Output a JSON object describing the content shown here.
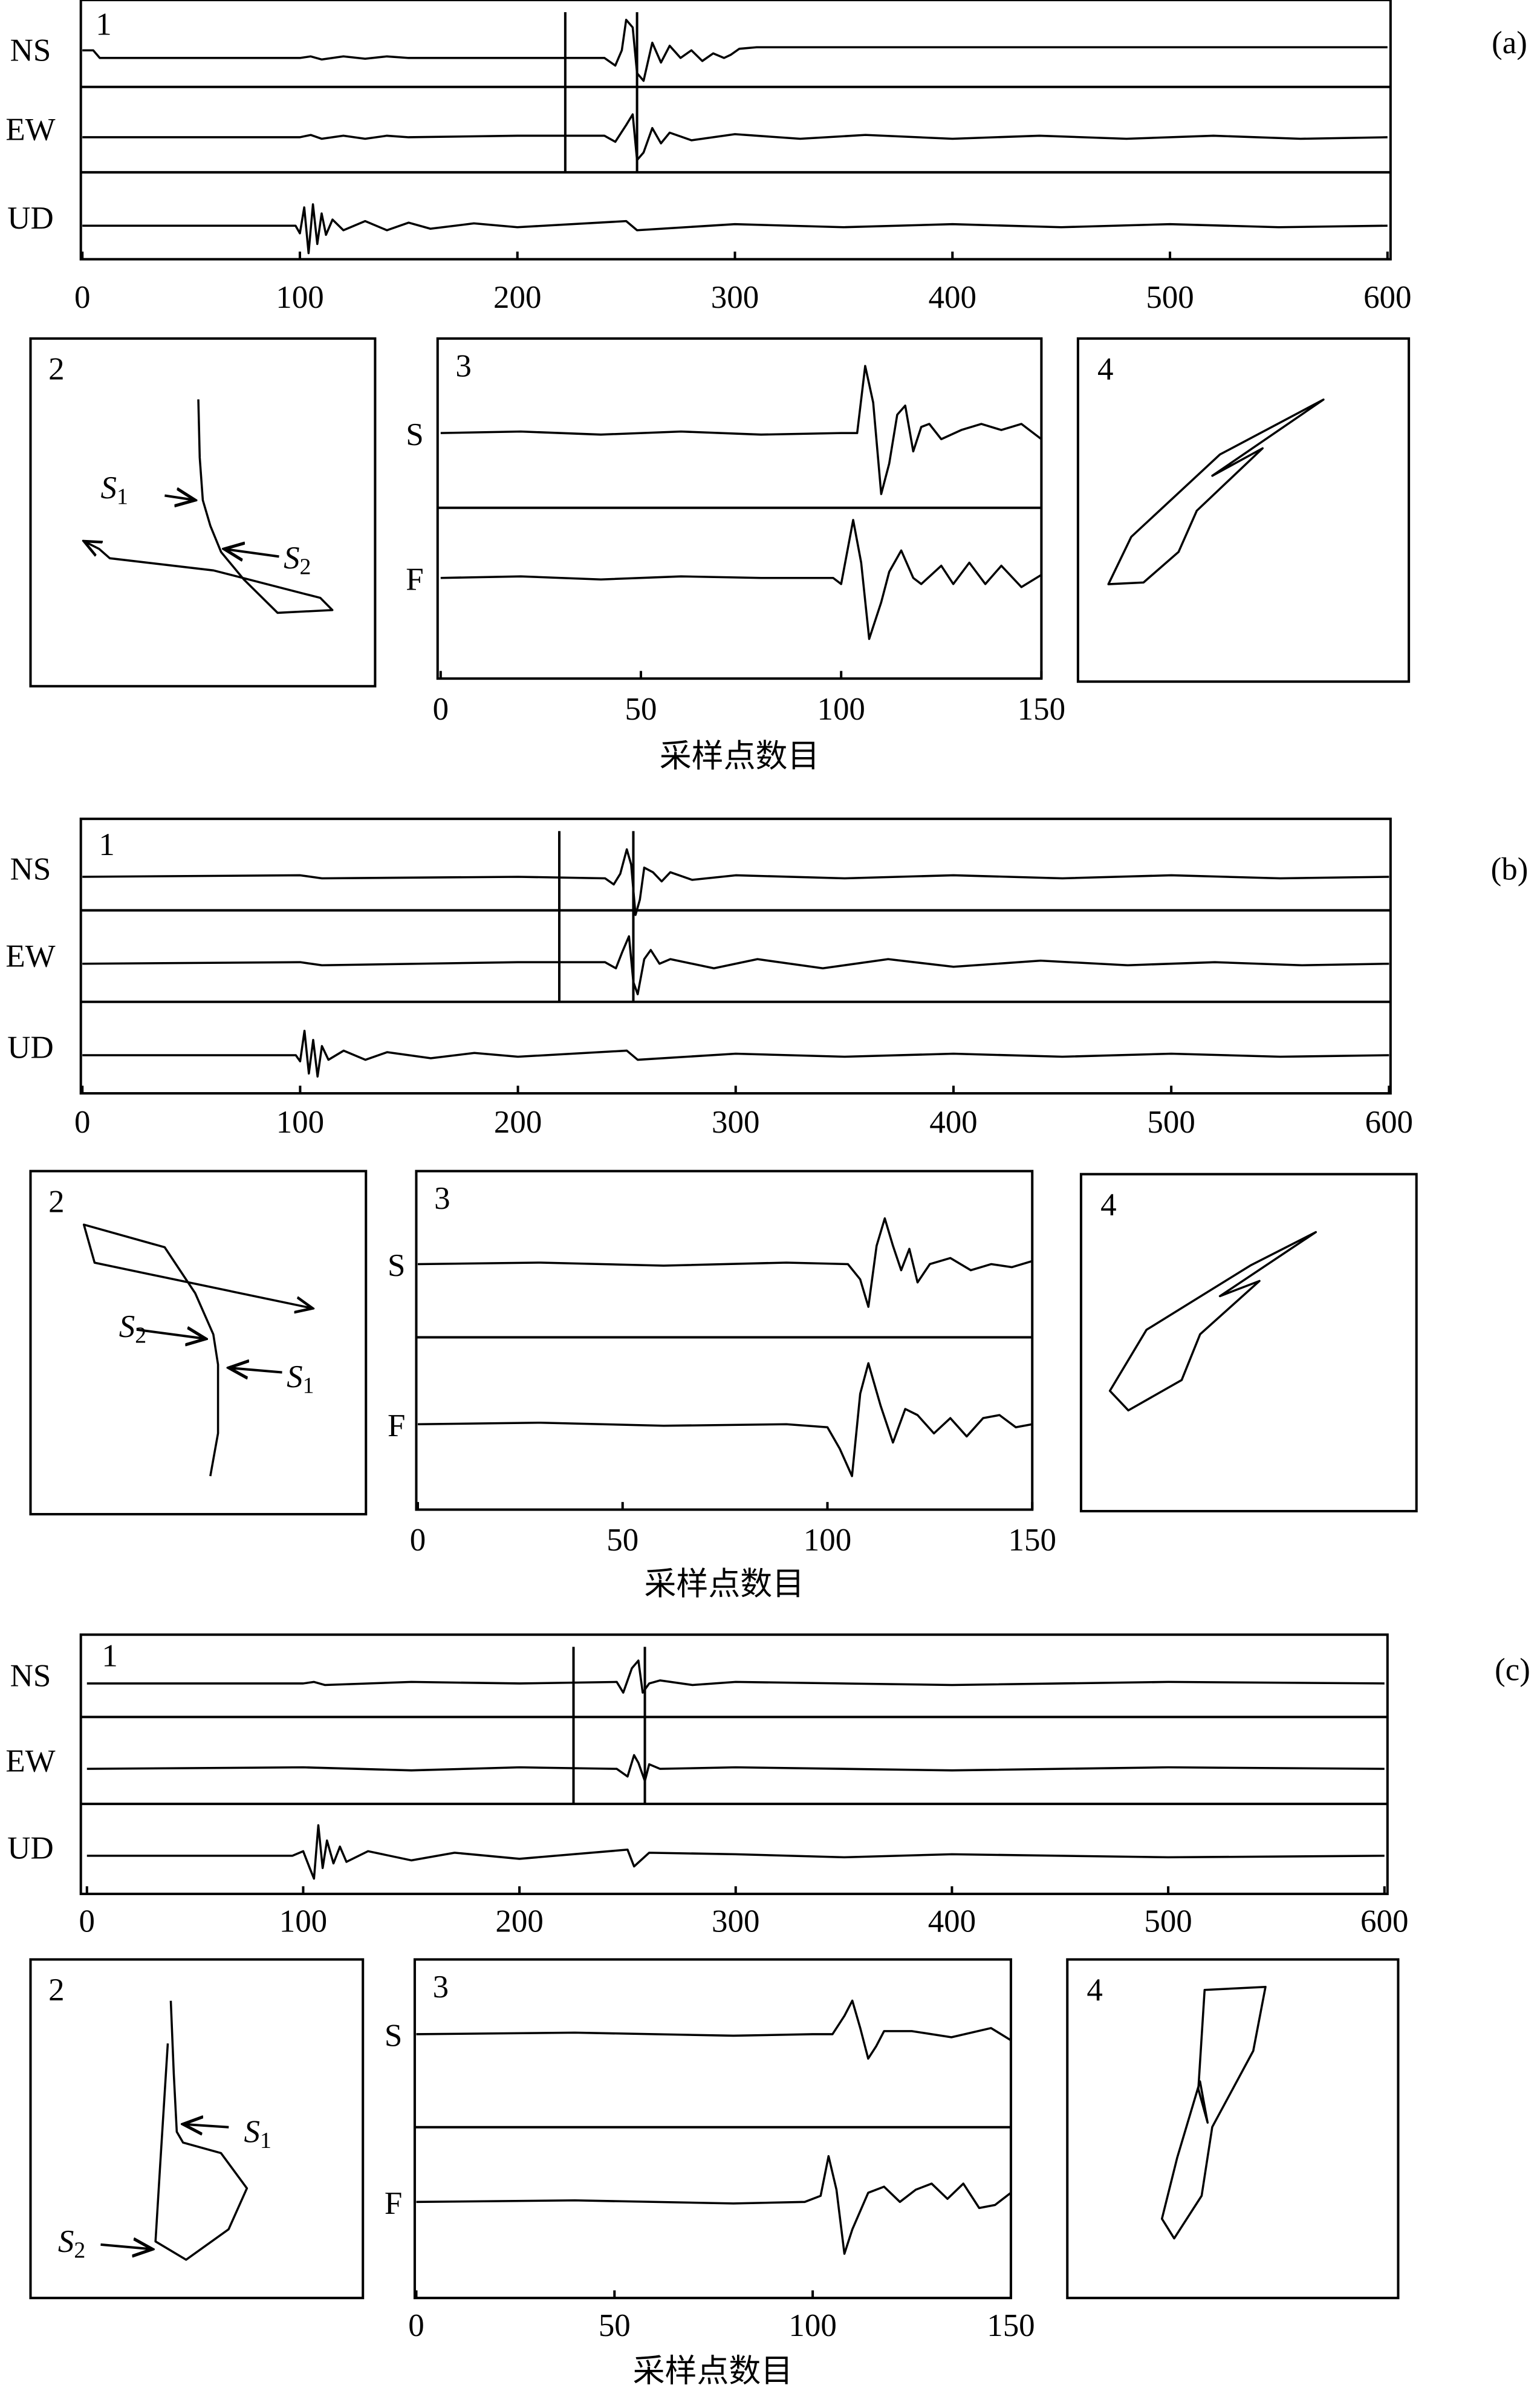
{
  "panels": [
    {
      "label": "(a)",
      "seismogram": {
        "number": "1",
        "xlim": [
          0,
          600
        ],
        "xticks": [
          0,
          100,
          200,
          300,
          400,
          500,
          600
        ],
        "markers": [
          222,
          255
        ],
        "traces": [
          {
            "name": "NS",
            "x": [
              0,
              5,
              8,
              100,
              105,
              110,
              120,
              130,
              140,
              150,
              200,
              240,
              245,
              248,
              250,
              253,
              255,
              258,
              262,
              266,
              270,
              275,
              280,
              285,
              290,
              295,
              298,
              302,
              310,
              600
            ],
            "values": [
              0.5,
              0.5,
              0,
              0,
              0.1,
              -0.1,
              0.1,
              -0.05,
              0.1,
              0,
              0,
              0,
              -0.5,
              0.5,
              2.5,
              2.0,
              -1.0,
              -1.5,
              1.0,
              -0.3,
              0.8,
              0,
              0.5,
              -0.2,
              0.3,
              0,
              0.2,
              0.6,
              0.7,
              0.7
            ]
          },
          {
            "name": "EW",
            "x": [
              0,
              100,
              105,
              110,
              120,
              130,
              140,
              150,
              200,
              240,
              245,
              250,
              253,
              255,
              258,
              262,
              266,
              270,
              280,
              300,
              330,
              360,
              400,
              440,
              480,
              520,
              560,
              600
            ],
            "values": [
              0,
              0,
              0.15,
              -0.1,
              0.1,
              -0.1,
              0.1,
              0,
              0.1,
              0.1,
              -0.3,
              0.8,
              1.5,
              -1.5,
              -1.0,
              0.6,
              -0.4,
              0.3,
              -0.2,
              0.2,
              -0.1,
              0.15,
              -0.1,
              0.1,
              -0.1,
              0.1,
              -0.1,
              0
            ]
          },
          {
            "name": "UD",
            "x": [
              0,
              98,
              100,
              102,
              104,
              106,
              108,
              110,
              112,
              115,
              120,
              130,
              140,
              150,
              160,
              180,
              200,
              250,
              255,
              300,
              350,
              400,
              450,
              500,
              550,
              600
            ],
            "values": [
              0,
              0,
              -0.5,
              1.2,
              -1.8,
              1.4,
              -1.2,
              0.8,
              -0.6,
              0.4,
              -0.3,
              0.3,
              -0.3,
              0.2,
              -0.2,
              0.15,
              -0.1,
              0.3,
              -0.3,
              0.1,
              -0.1,
              0.1,
              -0.1,
              0.1,
              -0.1,
              0
            ]
          }
        ]
      },
      "particle_motion": {
        "number": "2",
        "trajectory": {
          "x": [
            48.7,
            49.1,
            50,
            52.2,
            55.3,
            61.9,
            71.7,
            87.6,
            84.1,
            53.1,
            23,
            19.9,
            15.5
          ],
          "y": [
            17.5,
            34.2,
            46.5,
            53.9,
            61.4,
            69.3,
            78.9,
            78.1,
            74.6,
            66.7,
            63.2,
            60.5,
            58.3
          ]
        },
        "annotations": [
          {
            "text": "S",
            "sub": "1"
          },
          {
            "text": "S",
            "sub": "2"
          }
        ]
      },
      "rotated": {
        "number": "3",
        "xlim": [
          0,
          150
        ],
        "xticks": [
          0,
          50,
          100,
          150
        ],
        "xlabel": "采样点数目",
        "traces": [
          {
            "name": "S",
            "x": [
              0,
              20,
              40,
              60,
              80,
              100,
              104,
              106,
              108,
              110,
              112,
              114,
              116,
              118,
              120,
              122,
              125,
              130,
              135,
              140,
              145,
              150
            ],
            "values": [
              0,
              0.05,
              -0.05,
              0.05,
              -0.05,
              0,
              0,
              2.2,
              1.0,
              -2.0,
              -1.0,
              0.6,
              0.9,
              -0.6,
              0.2,
              0.3,
              -0.2,
              0.1,
              0.3,
              0.1,
              0.3,
              -0.2
            ]
          },
          {
            "name": "F",
            "x": [
              0,
              20,
              40,
              60,
              80,
              98,
              100,
              103,
              105,
              107,
              110,
              112,
              115,
              118,
              120,
              125,
              128,
              132,
              136,
              140,
              145,
              150
            ],
            "values": [
              0,
              0.05,
              -0.05,
              0.05,
              0,
              0,
              -0.2,
              1.9,
              0.5,
              -2.0,
              -0.8,
              0.2,
              0.9,
              0,
              -0.2,
              0.4,
              -0.2,
              0.5,
              -0.2,
              0.4,
              -0.3,
              0.1
            ]
          }
        ]
      },
      "polarization": {
        "number": "4",
        "x": [
          9.2,
          16.1,
          42.9,
          74.2,
          40.6,
          55.8,
          35.9,
          30.4,
          19.8
        ],
        "y": [
          71.6,
          57.8,
          33.8,
          17.8,
          40,
          32,
          50.2,
          62.2,
          71.1
        ]
      }
    },
    {
      "label": "(b)",
      "seismogram": {
        "number": "1",
        "xlim": [
          0,
          600
        ],
        "xticks": [
          0,
          100,
          200,
          300,
          400,
          500,
          600
        ],
        "markers": [
          219,
          253
        ],
        "traces": [
          {
            "name": "NS",
            "x": [
              0,
              100,
              110,
              200,
              240,
              244,
              247,
              250,
              252,
              254,
              256,
              258,
              262,
              266,
              270,
              280,
              300,
              350,
              400,
              450,
              500,
              550,
              600
            ],
            "values": [
              0,
              0.1,
              -0.1,
              0,
              -0.1,
              -0.5,
              0.2,
              1.8,
              0.8,
              -2.5,
              -1.5,
              0.6,
              0.3,
              -0.3,
              0.3,
              -0.2,
              0.1,
              -0.1,
              0.1,
              -0.1,
              0.1,
              -0.1,
              0
            ]
          },
          {
            "name": "EW",
            "x": [
              0,
              100,
              110,
              200,
              240,
              245,
              248,
              251,
              253,
              255,
              258,
              261,
              265,
              270,
              290,
              310,
              340,
              370,
              400,
              440,
              480,
              520,
              560,
              600
            ],
            "values": [
              0,
              0.1,
              -0.1,
              0.1,
              0.1,
              -0.3,
              0.8,
              1.8,
              -1.2,
              -2.0,
              0.3,
              0.9,
              0,
              0.3,
              -0.3,
              0.3,
              -0.3,
              0.3,
              -0.2,
              0.2,
              -0.1,
              0.1,
              -0.1,
              0
            ]
          },
          {
            "name": "UD",
            "x": [
              0,
              98,
              100,
              102,
              104,
              106,
              108,
              110,
              113,
              120,
              130,
              140,
              160,
              180,
              200,
              250,
              255,
              300,
              350,
              400,
              450,
              500,
              550,
              600
            ],
            "values": [
              0,
              0,
              -0.4,
              1.6,
              -1.2,
              1.0,
              -1.4,
              0.6,
              -0.3,
              0.3,
              -0.3,
              0.2,
              -0.2,
              0.15,
              -0.1,
              0.3,
              -0.3,
              0.1,
              -0.1,
              0.1,
              -0.1,
              0.1,
              -0.1,
              0
            ]
          }
        ]
      },
      "particle_motion": {
        "number": "2",
        "trajectory": {
          "x": [
            53.6,
            55.9,
            55.9,
            54.5,
            49.1,
            40,
            15.9,
            19.1,
            84.1
          ],
          "y": [
            88.9,
            76.4,
            56.4,
            47.6,
            35.6,
            22.2,
            15.6,
            26.7,
            40
          ]
        },
        "annotations": [
          {
            "text": "S",
            "sub": "1"
          },
          {
            "text": "S",
            "sub": "2"
          }
        ]
      },
      "rotated": {
        "number": "3",
        "xlim": [
          0,
          150
        ],
        "xticks": [
          0,
          50,
          100,
          150
        ],
        "xlabel": "采样点数目",
        "traces": [
          {
            "name": "S",
            "x": [
              0,
              30,
              60,
              90,
              105,
              108,
              110,
              112,
              114,
              116,
              118,
              120,
              122,
              125,
              130,
              135,
              140,
              145,
              150
            ],
            "values": [
              0,
              0.05,
              -0.05,
              0.05,
              0,
              -0.5,
              -1.4,
              0.6,
              1.5,
              0.6,
              -0.2,
              0.5,
              -0.6,
              0,
              0.2,
              -0.2,
              0,
              -0.1,
              0.1
            ]
          },
          {
            "name": "F",
            "x": [
              0,
              30,
              60,
              90,
              100,
              103,
              106,
              108,
              110,
              113,
              116,
              119,
              122,
              126,
              130,
              134,
              138,
              142,
              146,
              150
            ],
            "values": [
              0,
              0.05,
              -0.05,
              0,
              -0.1,
              -0.8,
              -1.7,
              1.0,
              2.0,
              0.6,
              -0.6,
              0.5,
              0.3,
              -0.3,
              0.2,
              -0.4,
              0.2,
              0.3,
              -0.1,
              0
            ]
          }
        ]
      },
      "polarization": {
        "number": "4",
        "x": [
          8.6,
          19.5,
          50.5,
          70,
          41.4,
          53.2,
          35.5,
          30,
          14.1
        ],
        "y": [
          64.3,
          46.2,
          27.1,
          17.2,
          36.2,
          31.7,
          47.5,
          61.1,
          70.1
        ]
      }
    },
    {
      "label": "(c)",
      "seismogram": {
        "number": "1",
        "xlim": [
          0,
          600
        ],
        "xticks": [
          0,
          100,
          200,
          300,
          400,
          500,
          600
        ],
        "markers": [
          225,
          258
        ],
        "traces": [
          {
            "name": "NS",
            "x": [
              0,
              100,
              105,
              110,
              150,
              200,
              245,
              248,
              252,
              255,
              257,
              260,
              265,
              280,
              300,
              400,
              500,
              600
            ],
            "values": [
              0,
              0,
              0.1,
              -0.1,
              0.1,
              0,
              0.1,
              -0.6,
              1.0,
              1.5,
              -0.6,
              0,
              0.2,
              -0.1,
              0.1,
              -0.1,
              0.1,
              0
            ]
          },
          {
            "name": "EW",
            "x": [
              0,
              100,
              150,
              200,
              245,
              250,
              253,
              255,
              258,
              260,
              265,
              300,
              400,
              500,
              600
            ],
            "values": [
              0,
              0.1,
              -0.1,
              0.1,
              0,
              -0.5,
              0.9,
              0.4,
              -0.8,
              0.3,
              0,
              0.1,
              -0.1,
              0.1,
              0
            ]
          },
          {
            "name": "UD",
            "x": [
              0,
              95,
              100,
              103,
              105,
              107,
              109,
              111,
              114,
              117,
              120,
              130,
              150,
              170,
              200,
              250,
              253,
              260,
              300,
              350,
              400,
              500,
              600
            ],
            "values": [
              0,
              0,
              0.3,
              -0.8,
              -1.5,
              2.0,
              -0.8,
              1.0,
              -0.5,
              0.6,
              -0.4,
              0.3,
              -0.3,
              0.2,
              -0.2,
              0.4,
              -0.7,
              0.2,
              0.1,
              -0.1,
              0.1,
              -0.1,
              0
            ]
          }
        ]
      },
      "particle_motion": {
        "number": "2",
        "trajectory": {
          "x": [
            42.2,
            43.1,
            44,
            45.9,
            57.3,
            65.1,
            59.6,
            46.8,
            37.6,
            39,
            41.3
          ],
          "y": [
            12.2,
            33.8,
            50.9,
            54.1,
            57.2,
            67.6,
            79.7,
            88.7,
            83.3,
            60.8,
            24.8
          ]
        },
        "annotations": [
          {
            "text": "S",
            "sub": "1"
          },
          {
            "text": "S",
            "sub": "2"
          }
        ]
      },
      "rotated": {
        "number": "3",
        "xlim": [
          0,
          150
        ],
        "xticks": [
          0,
          50,
          100,
          150
        ],
        "xlabel": "采样点数目",
        "traces": [
          {
            "name": "S",
            "x": [
              0,
              40,
              80,
              100,
              105,
              108,
              110,
              112,
              114,
              116,
              118,
              125,
              135,
              145,
              150
            ],
            "values": [
              0,
              0.05,
              -0.05,
              0,
              0,
              0.6,
              1.1,
              0.2,
              -0.8,
              -0.4,
              0.1,
              0.1,
              -0.1,
              0.2,
              -0.2
            ]
          },
          {
            "name": "F",
            "x": [
              0,
              40,
              80,
              98,
              102,
              104,
              106,
              108,
              110,
              114,
              118,
              122,
              126,
              130,
              134,
              138,
              142,
              146,
              150
            ],
            "values": [
              0,
              0.05,
              -0.05,
              0,
              0.2,
              1.5,
              0.4,
              -1.7,
              -0.9,
              0.3,
              0.5,
              0,
              0.4,
              0.6,
              0.1,
              0.6,
              -0.2,
              -0.1,
              0.3
            ]
          }
        ]
      },
      "polarization": {
        "number": "4",
        "x": [
          41.5,
          59.9,
          56.2,
          43.8,
          40.6,
          32.3,
          28.6,
          33.2,
          40.1,
          42.4,
          39.6
        ],
        "y": [
          9,
          8.1,
          27,
          49.5,
          69.8,
          82.4,
          76.6,
          58.6,
          36,
          48.2,
          38.3
        ]
      }
    }
  ]
}
